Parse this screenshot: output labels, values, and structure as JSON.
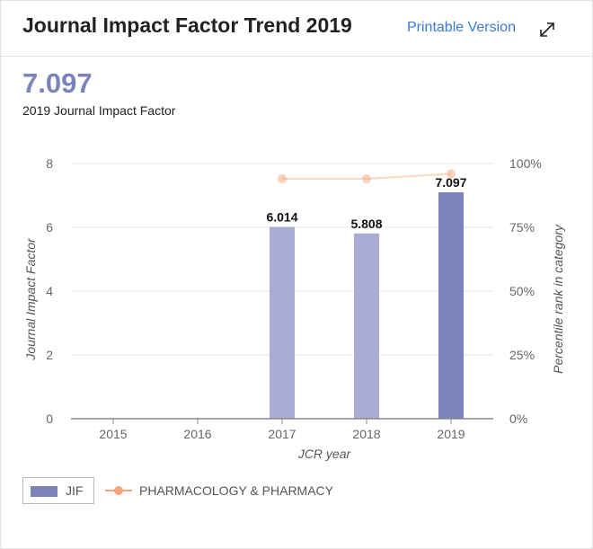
{
  "header": {
    "title": "Journal Impact Factor Trend 2019",
    "printable_label": "Printable Version"
  },
  "summary": {
    "value": "7.097",
    "label": "2019 Journal Impact Factor"
  },
  "colors": {
    "jif_bar": "#7b83bb",
    "jif_bar_light": "#a9add4",
    "percentile_line": "#f5a37b",
    "link": "#3a7bd5"
  },
  "chart_data": {
    "type": "bar",
    "xlabel": "JCR year",
    "ylabel": "Journal Impact Factor",
    "y2label": "Percentile rank in category",
    "categories": [
      "2015",
      "2016",
      "2017",
      "2018",
      "2019"
    ],
    "ylim": [
      0,
      8
    ],
    "yticks": [
      "0",
      "2",
      "4",
      "6",
      "8"
    ],
    "y2lim": [
      0,
      100
    ],
    "y2ticks": [
      "0%",
      "25%",
      "50%",
      "75%",
      "100%"
    ],
    "series": [
      {
        "name": "JIF",
        "values": [
          null,
          null,
          6.014,
          5.808,
          7.097
        ],
        "labels": [
          "",
          "",
          "6.014",
          "5.808",
          "7.097"
        ]
      },
      {
        "name": "PHARMACOLOGY & PHARMACY",
        "type": "line",
        "values": [
          null,
          null,
          94,
          94,
          96
        ]
      }
    ]
  },
  "legend": {
    "jif_label": "JIF",
    "category_label": "PHARMACOLOGY & PHARMACY"
  }
}
